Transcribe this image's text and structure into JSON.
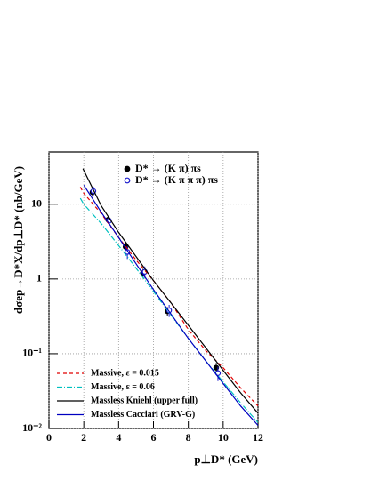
{
  "chart_data": {
    "type": "line",
    "y_label": "dσep→D*X/dp⊥D*  (nb/GeV)",
    "x_label": "p⊥D* (GeV)",
    "xlim": [
      0,
      12
    ],
    "xticks": [
      0,
      2,
      4,
      6,
      8,
      10,
      12
    ],
    "ylim": [
      0.01,
      50
    ],
    "y_log": true,
    "yticks": [
      {
        "value": 0.01,
        "label": "10⁻²"
      },
      {
        "value": 0.1,
        "label": "10⁻¹"
      },
      1,
      10
    ],
    "grid": true,
    "series": [
      {
        "name": "D* → (K π) πs",
        "color": "#000000",
        "style": "filled-points",
        "x": [
          2.5,
          3.4,
          4.4,
          5.4,
          6.8,
          9.6
        ],
        "values": [
          14.5,
          6.2,
          2.7,
          1.2,
          0.37,
          0.065
        ],
        "errors": [
          1.8,
          0.7,
          0.35,
          0.16,
          0.05,
          0.01
        ]
      },
      {
        "name": "D* → (K π π π) πs",
        "color": "#1a1acc",
        "style": "open-points",
        "x": [
          2.55,
          3.45,
          4.5,
          5.5,
          6.9,
          9.7
        ],
        "values": [
          15,
          6.0,
          2.3,
          1.25,
          0.38,
          0.055
        ],
        "errors": [
          2.2,
          0.9,
          0.45,
          0.22,
          0.07,
          0.012
        ]
      },
      {
        "name": "Massive, ε = 0.015",
        "color": "#e00000",
        "style": "dashed",
        "x": [
          1.8,
          2,
          3,
          4,
          5,
          6,
          7,
          8,
          9,
          10,
          11,
          12
        ],
        "values": [
          17,
          14,
          7.5,
          3.6,
          1.8,
          0.95,
          0.48,
          0.21,
          0.11,
          0.065,
          0.035,
          0.02
        ]
      },
      {
        "name": "Massive, ε = 0.06",
        "color": "#00c0c0",
        "style": "dash-dot",
        "x": [
          1.8,
          2,
          3,
          4,
          5,
          6,
          7,
          8,
          9,
          10,
          11,
          12
        ],
        "values": [
          12,
          10,
          5.5,
          2.8,
          1.4,
          0.68,
          0.33,
          0.16,
          0.08,
          0.042,
          0.022,
          0.012
        ]
      },
      {
        "name": "Massless Kniehl (upper full)",
        "color": "#000000",
        "style": "solid",
        "x": [
          1.95,
          3,
          4,
          5,
          6,
          7,
          8,
          9,
          10,
          11,
          12
        ],
        "values": [
          30,
          9.5,
          4.2,
          2.0,
          0.95,
          0.48,
          0.24,
          0.12,
          0.06,
          0.03,
          0.016
        ]
      },
      {
        "name": "Massless Cacciari (GRV-G)",
        "color": "#0000c0",
        "style": "solid",
        "x": [
          2,
          3,
          4,
          5,
          6,
          7,
          8,
          9,
          10,
          11,
          12
        ],
        "values": [
          18,
          7.8,
          3.6,
          1.6,
          0.72,
          0.34,
          0.16,
          0.08,
          0.04,
          0.02,
          0.011
        ]
      }
    ]
  }
}
